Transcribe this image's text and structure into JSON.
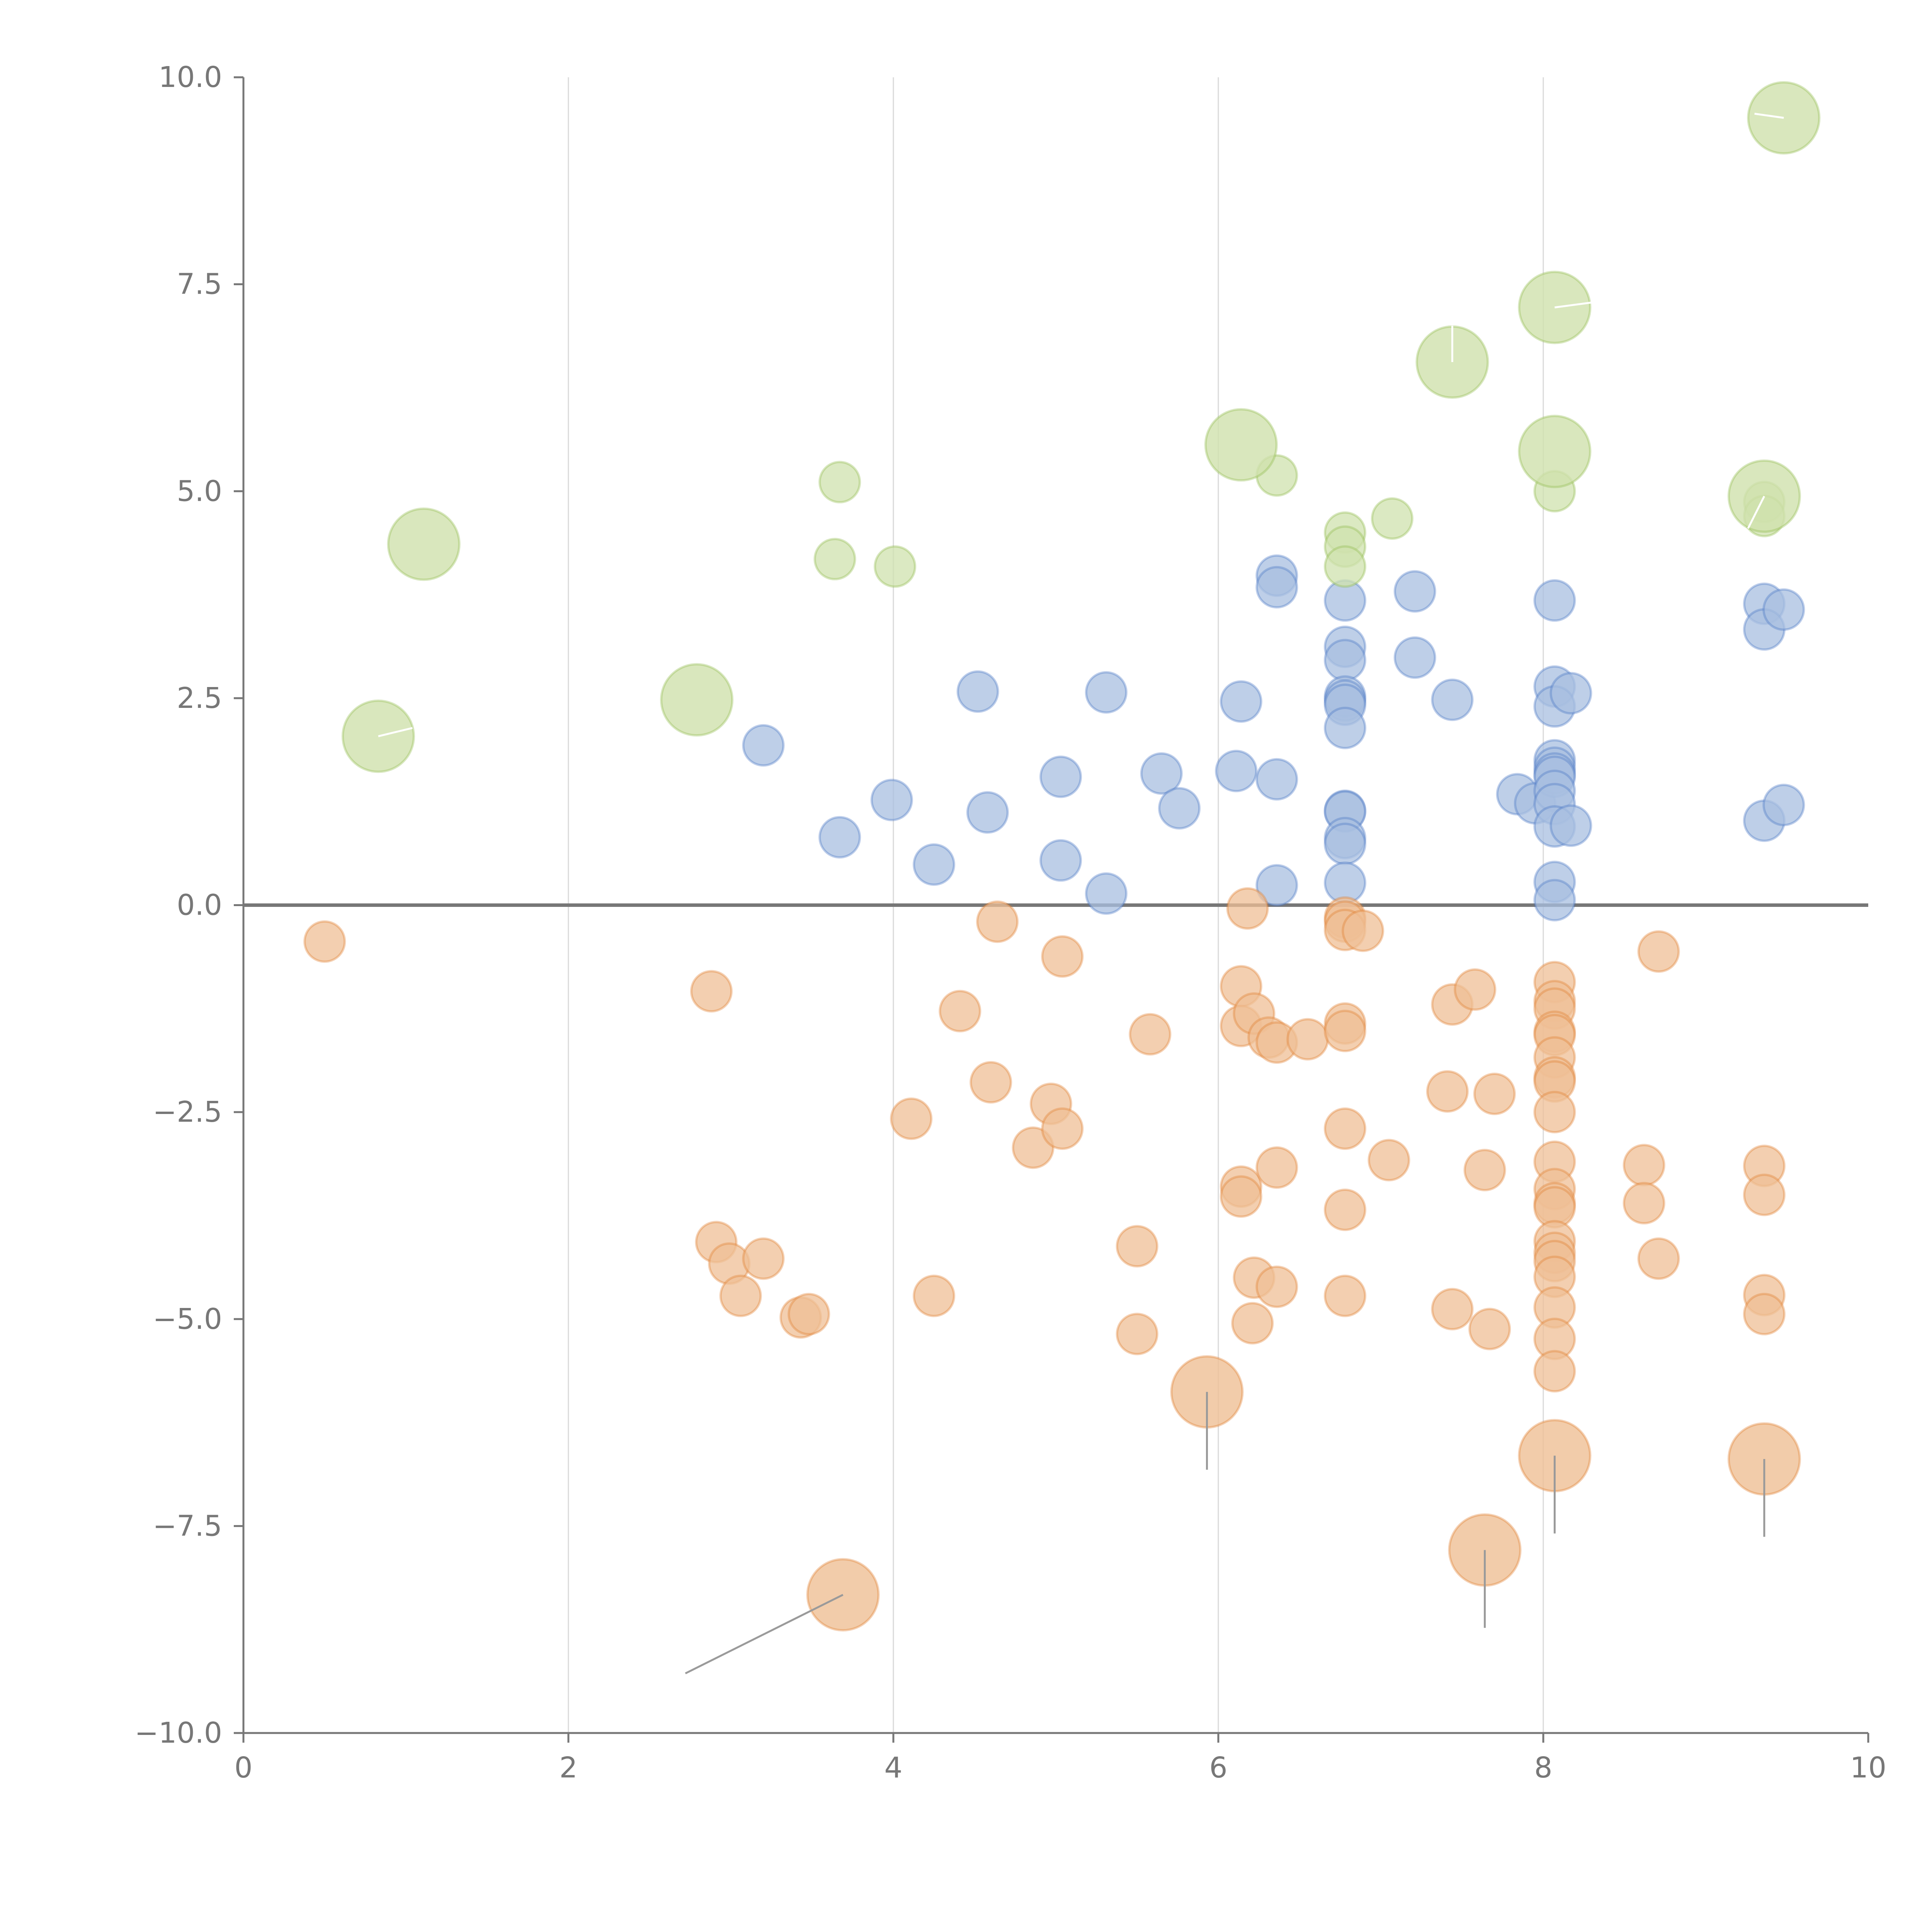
{
  "chart_data": {
    "type": "scatter",
    "title": "",
    "xlabel": "",
    "ylabel": "",
    "xlim": [
      0,
      10
    ],
    "ylim": [
      -10,
      10
    ],
    "x_ticks": [
      0,
      2,
      4,
      6,
      8,
      10
    ],
    "y_ticks": [
      10.0,
      7.5,
      5.0,
      2.5,
      0.0,
      -2.5,
      -5.0,
      -7.5,
      -10.0
    ],
    "x_tick_labels": [
      "0",
      "2",
      "4",
      "6",
      "8",
      "10"
    ],
    "y_tick_labels": [
      "10.0",
      "7.5",
      "5.0",
      "2.5",
      "0.0",
      "−2.5",
      "−5.0",
      "−7.5",
      "−10.0"
    ],
    "vertical_gridlines_at": [
      2,
      4,
      6,
      8
    ],
    "reference_line_y": 0,
    "series": [
      {
        "name": "blue",
        "color": "#4472c4",
        "fill": "#a8bfe0",
        "points": [
          {
            "x": 3.2,
            "y": 1.93
          },
          {
            "x": 3.67,
            "y": 0.82
          },
          {
            "x": 3.99,
            "y": 1.27
          },
          {
            "x": 4.25,
            "y": 0.49
          },
          {
            "x": 4.52,
            "y": 2.58
          },
          {
            "x": 4.58,
            "y": 1.12
          },
          {
            "x": 5.03,
            "y": 1.55
          },
          {
            "x": 5.03,
            "y": 0.54
          },
          {
            "x": 5.31,
            "y": 2.57
          },
          {
            "x": 5.31,
            "y": 0.14
          },
          {
            "x": 5.65,
            "y": 1.59
          },
          {
            "x": 5.76,
            "y": 1.17
          },
          {
            "x": 6.11,
            "y": 1.62
          },
          {
            "x": 6.14,
            "y": 2.46
          },
          {
            "x": 6.36,
            "y": 3.98
          },
          {
            "x": 6.36,
            "y": 3.84
          },
          {
            "x": 6.36,
            "y": 1.52
          },
          {
            "x": 6.36,
            "y": 0.24
          },
          {
            "x": 6.78,
            "y": 3.68
          },
          {
            "x": 6.78,
            "y": 3.12
          },
          {
            "x": 6.78,
            "y": 2.96
          },
          {
            "x": 6.78,
            "y": 2.52
          },
          {
            "x": 6.78,
            "y": 2.47
          },
          {
            "x": 6.78,
            "y": 2.42
          },
          {
            "x": 6.78,
            "y": 2.14
          },
          {
            "x": 6.78,
            "y": 1.14
          },
          {
            "x": 6.78,
            "y": 1.13
          },
          {
            "x": 6.78,
            "y": 0.81
          },
          {
            "x": 6.78,
            "y": 0.74
          },
          {
            "x": 6.78,
            "y": 0.27
          },
          {
            "x": 7.21,
            "y": 3.79
          },
          {
            "x": 7.21,
            "y": 2.99
          },
          {
            "x": 7.44,
            "y": 2.48
          },
          {
            "x": 7.84,
            "y": 1.34
          },
          {
            "x": 7.95,
            "y": 1.23
          },
          {
            "x": 8.07,
            "y": 3.68
          },
          {
            "x": 8.07,
            "y": 2.64
          },
          {
            "x": 8.07,
            "y": 2.4
          },
          {
            "x": 8.07,
            "y": 1.75
          },
          {
            "x": 8.07,
            "y": 1.66
          },
          {
            "x": 8.07,
            "y": 1.59
          },
          {
            "x": 8.07,
            "y": 1.55
          },
          {
            "x": 8.07,
            "y": 1.38
          },
          {
            "x": 8.07,
            "y": 1.22
          },
          {
            "x": 8.07,
            "y": 0.95
          },
          {
            "x": 8.07,
            "y": 0.28
          },
          {
            "x": 8.07,
            "y": 0.06
          },
          {
            "x": 8.17,
            "y": 2.56
          },
          {
            "x": 8.17,
            "y": 0.96
          },
          {
            "x": 9.36,
            "y": 3.64
          },
          {
            "x": 9.36,
            "y": 3.33
          },
          {
            "x": 9.36,
            "y": 1.02
          },
          {
            "x": 9.48,
            "y": 3.57
          },
          {
            "x": 9.48,
            "y": 1.21
          }
        ]
      },
      {
        "name": "orange",
        "color": "#e07b2a",
        "fill": "#efbf95",
        "points": [
          {
            "x": 0.5,
            "y": -0.44
          },
          {
            "x": 2.88,
            "y": -1.04
          },
          {
            "x": 2.91,
            "y": -4.07
          },
          {
            "x": 2.99,
            "y": -4.33
          },
          {
            "x": 3.06,
            "y": -4.72
          },
          {
            "x": 3.2,
            "y": -4.27
          },
          {
            "x": 3.43,
            "y": -4.98
          },
          {
            "x": 3.48,
            "y": -4.94
          },
          {
            "x": 4.11,
            "y": -2.58
          },
          {
            "x": 4.25,
            "y": -4.72
          },
          {
            "x": 4.41,
            "y": -1.28
          },
          {
            "x": 4.6,
            "y": -2.14
          },
          {
            "x": 4.64,
            "y": -0.2
          },
          {
            "x": 4.86,
            "y": -2.93
          },
          {
            "x": 4.97,
            "y": -2.4
          },
          {
            "x": 5.04,
            "y": -2.7
          },
          {
            "x": 5.04,
            "y": -0.62
          },
          {
            "x": 5.5,
            "y": -4.12
          },
          {
            "x": 5.5,
            "y": -5.18
          },
          {
            "x": 5.58,
            "y": -1.56
          },
          {
            "x": 6.14,
            "y": -0.98
          },
          {
            "x": 6.14,
            "y": -1.46
          },
          {
            "x": 6.14,
            "y": -3.4
          },
          {
            "x": 6.14,
            "y": -3.52
          },
          {
            "x": 6.18,
            "y": -0.04
          },
          {
            "x": 6.22,
            "y": -1.31
          },
          {
            "x": 6.22,
            "y": -4.5
          },
          {
            "x": 6.21,
            "y": -5.05
          },
          {
            "x": 6.31,
            "y": -1.6
          },
          {
            "x": 6.36,
            "y": -1.66
          },
          {
            "x": 6.36,
            "y": -3.17
          },
          {
            "x": 6.36,
            "y": -4.61
          },
          {
            "x": 6.55,
            "y": -1.62
          },
          {
            "x": 6.78,
            "y": -0.15
          },
          {
            "x": 6.78,
            "y": -0.2
          },
          {
            "x": 6.78,
            "y": -0.3
          },
          {
            "x": 6.89,
            "y": -0.31
          },
          {
            "x": 6.78,
            "y": -1.43
          },
          {
            "x": 6.78,
            "y": -1.52
          },
          {
            "x": 6.78,
            "y": -2.7
          },
          {
            "x": 6.78,
            "y": -3.68
          },
          {
            "x": 6.78,
            "y": -4.72
          },
          {
            "x": 7.05,
            "y": -3.08
          },
          {
            "x": 7.41,
            "y": -2.25
          },
          {
            "x": 7.44,
            "y": -1.2
          },
          {
            "x": 7.44,
            "y": -4.88
          },
          {
            "x": 7.58,
            "y": -1.02
          },
          {
            "x": 7.64,
            "y": -3.2
          },
          {
            "x": 7.67,
            "y": -5.12
          },
          {
            "x": 7.7,
            "y": -2.28
          },
          {
            "x": 8.07,
            "y": -0.93
          },
          {
            "x": 8.07,
            "y": -1.16
          },
          {
            "x": 8.07,
            "y": -1.25
          },
          {
            "x": 8.07,
            "y": -1.53
          },
          {
            "x": 8.07,
            "y": -1.57
          },
          {
            "x": 8.07,
            "y": -1.84
          },
          {
            "x": 8.07,
            "y": -2.08
          },
          {
            "x": 8.07,
            "y": -2.13
          },
          {
            "x": 8.07,
            "y": -2.5
          },
          {
            "x": 8.07,
            "y": -3.1
          },
          {
            "x": 8.07,
            "y": -3.43
          },
          {
            "x": 8.07,
            "y": -3.6
          },
          {
            "x": 8.07,
            "y": -3.65
          },
          {
            "x": 8.07,
            "y": -4.06
          },
          {
            "x": 8.07,
            "y": -4.2
          },
          {
            "x": 8.07,
            "y": -4.3
          },
          {
            "x": 8.07,
            "y": -4.49
          },
          {
            "x": 8.07,
            "y": -4.86
          },
          {
            "x": 8.07,
            "y": -5.24
          },
          {
            "x": 8.07,
            "y": -5.63
          },
          {
            "x": 8.62,
            "y": -3.14
          },
          {
            "x": 8.62,
            "y": -3.6
          },
          {
            "x": 8.71,
            "y": -0.56
          },
          {
            "x": 8.71,
            "y": -4.27
          },
          {
            "x": 9.36,
            "y": -3.15
          },
          {
            "x": 9.36,
            "y": -3.5
          },
          {
            "x": 9.36,
            "y": -4.71
          },
          {
            "x": 9.36,
            "y": -4.94
          }
        ]
      },
      {
        "name": "green",
        "color": "#8fb94a",
        "fill": "#cfe1ad",
        "points": [
          {
            "x": 3.64,
            "y": 4.18
          },
          {
            "x": 3.67,
            "y": 5.11
          },
          {
            "x": 4.01,
            "y": 4.09
          },
          {
            "x": 6.36,
            "y": 5.19
          },
          {
            "x": 6.78,
            "y": 4.5
          },
          {
            "x": 6.78,
            "y": 4.33
          },
          {
            "x": 6.78,
            "y": 4.09
          },
          {
            "x": 7.07,
            "y": 4.67
          },
          {
            "x": 8.07,
            "y": 5.0
          },
          {
            "x": 9.36,
            "y": 4.87
          },
          {
            "x": 9.36,
            "y": 4.7
          }
        ]
      }
    ],
    "labeled_points": [
      {
        "series": "green",
        "x": 1.11,
        "y": 4.36
      },
      {
        "series": "green",
        "x": 0.83,
        "y": 2.04,
        "leader_to": [
          1.04,
          2.14
        ]
      },
      {
        "series": "green",
        "x": 2.79,
        "y": 2.48
      },
      {
        "series": "green",
        "x": 6.14,
        "y": 5.56
      },
      {
        "series": "green",
        "x": 7.44,
        "y": 6.56,
        "leader_to": [
          7.44,
          7.0
        ]
      },
      {
        "series": "green",
        "x": 8.07,
        "y": 7.22,
        "leader_to": [
          8.3,
          7.28
        ]
      },
      {
        "series": "green",
        "x": 8.07,
        "y": 5.48
      },
      {
        "series": "green",
        "x": 9.36,
        "y": 4.94,
        "leader_to": [
          9.26,
          4.55
        ]
      },
      {
        "series": "green",
        "x": 9.48,
        "y": 9.51,
        "leader_to": [
          9.3,
          9.56
        ]
      },
      {
        "series": "orange",
        "x": 3.69,
        "y": -8.33,
        "leader_to": [
          2.72,
          -9.28
        ]
      },
      {
        "series": "orange",
        "x": 5.93,
        "y": -5.88,
        "leader_to": [
          5.93,
          -6.82
        ]
      },
      {
        "series": "orange",
        "x": 7.64,
        "y": -7.79,
        "leader_to": [
          7.64,
          -8.73
        ]
      },
      {
        "series": "orange",
        "x": 8.07,
        "y": -6.65,
        "leader_to": [
          8.07,
          -7.59
        ]
      },
      {
        "series": "orange",
        "x": 9.36,
        "y": -6.69,
        "leader_to": [
          9.36,
          -7.63
        ]
      }
    ]
  }
}
